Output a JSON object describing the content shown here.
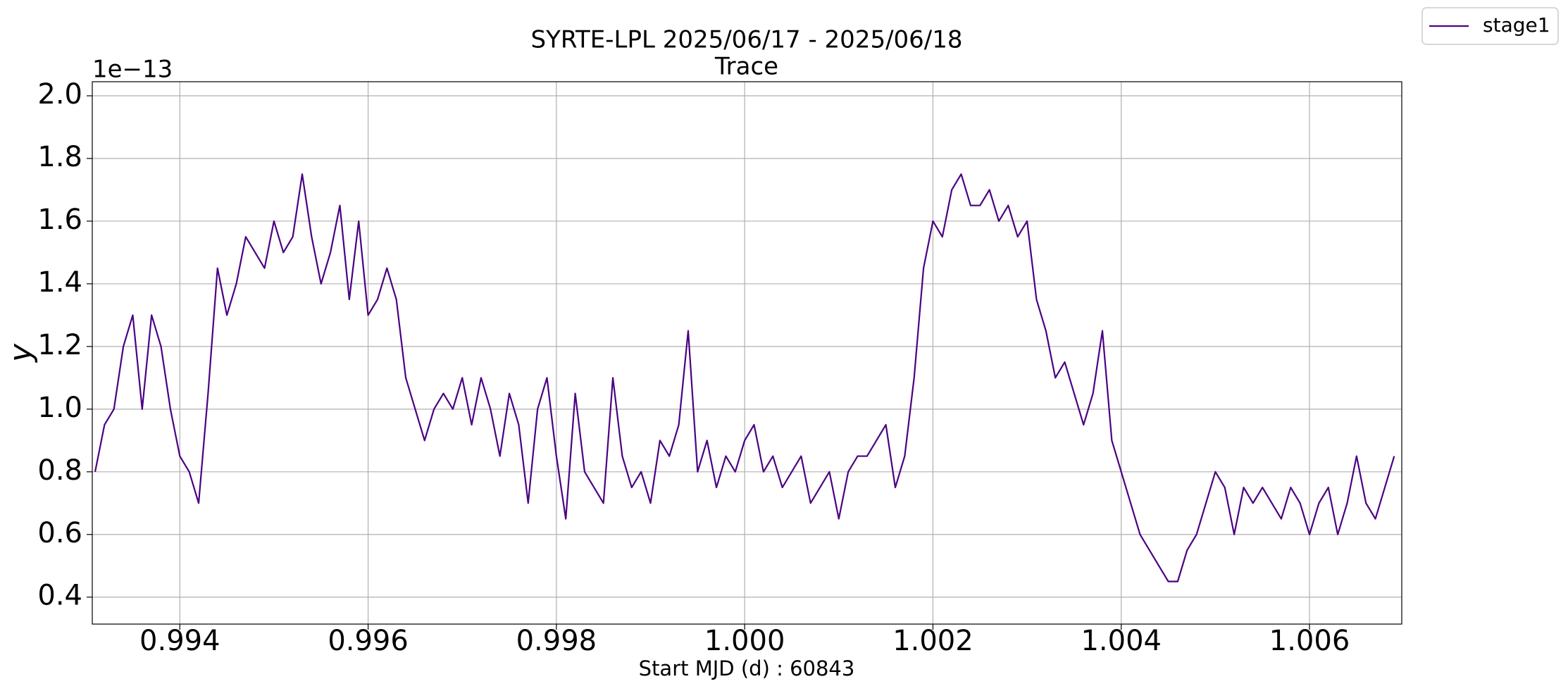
{
  "chart_data": {
    "type": "line",
    "title": "SYRTE-LPL 2025/06/17 - 2025/06/18",
    "subtitle": "Trace",
    "x_label": "Start MJD (d) : 60843",
    "y_label": "y",
    "y_offset_text": "1e−13",
    "x": [
      0.9931,
      0.9932,
      0.9933,
      0.9934,
      0.9935,
      0.9936,
      0.9937,
      0.9938,
      0.9939,
      0.994,
      0.9941,
      0.9942,
      0.9943,
      0.9944,
      0.9945,
      0.9946,
      0.9947,
      0.9948,
      0.9949,
      0.995,
      0.9951,
      0.9952,
      0.9953,
      0.9954,
      0.9955,
      0.9956,
      0.9957,
      0.9958,
      0.9959,
      0.996,
      0.9961,
      0.9962,
      0.9963,
      0.9964,
      0.9965,
      0.9966,
      0.9967,
      0.9968,
      0.9969,
      0.997,
      0.9971,
      0.9972,
      0.9973,
      0.9974,
      0.9975,
      0.9976,
      0.9977,
      0.9978,
      0.9979,
      0.998,
      0.9981,
      0.9982,
      0.9983,
      0.9984,
      0.9985,
      0.9986,
      0.9987,
      0.9988,
      0.9989,
      0.999,
      0.9991,
      0.9992,
      0.9993,
      0.9994,
      0.9995,
      0.9996,
      0.9997,
      0.9998,
      0.9999,
      1.0,
      1.0001,
      1.0002,
      1.0003,
      1.0004,
      1.0005,
      1.0006,
      1.0007,
      1.0008,
      1.0009,
      1.001,
      1.0011,
      1.0012,
      1.0013,
      1.0014,
      1.0015,
      1.0016,
      1.0017,
      1.0018,
      1.0019,
      1.002,
      1.0021,
      1.0022,
      1.0023,
      1.0024,
      1.0025,
      1.0026,
      1.0027,
      1.0028,
      1.0029,
      1.003,
      1.0031,
      1.0032,
      1.0033,
      1.0034,
      1.0035,
      1.0036,
      1.0037,
      1.0038,
      1.0039,
      1.004,
      1.0041,
      1.0042,
      1.0043,
      1.0044,
      1.0045,
      1.0046,
      1.0047,
      1.0048,
      1.0049,
      1.005,
      1.0051,
      1.0052,
      1.0053,
      1.0054,
      1.0055,
      1.0056,
      1.0057,
      1.0058,
      1.0059,
      1.006,
      1.0061,
      1.0062,
      1.0063,
      1.0064,
      1.0065,
      1.0066,
      1.0067,
      1.0068,
      1.0069
    ],
    "series": [
      {
        "name": "stage1",
        "color": "#4b0082",
        "values": [
          0.8,
          0.95,
          1.0,
          1.2,
          1.3,
          1.0,
          1.3,
          1.2,
          1.0,
          0.85,
          0.8,
          0.7,
          1.05,
          1.45,
          1.3,
          1.4,
          1.55,
          1.5,
          1.45,
          1.6,
          1.5,
          1.55,
          1.75,
          1.55,
          1.4,
          1.5,
          1.65,
          1.35,
          1.6,
          1.3,
          1.35,
          1.45,
          1.35,
          1.1,
          1.0,
          0.9,
          1.0,
          1.05,
          1.0,
          1.1,
          0.95,
          1.1,
          1.0,
          0.85,
          1.05,
          0.95,
          0.7,
          1.0,
          1.1,
          0.85,
          0.65,
          1.05,
          0.8,
          0.75,
          0.7,
          1.1,
          0.85,
          0.75,
          0.8,
          0.7,
          0.9,
          0.85,
          0.95,
          1.25,
          0.8,
          0.9,
          0.75,
          0.85,
          0.8,
          0.9,
          0.95,
          0.8,
          0.85,
          0.75,
          0.8,
          0.85,
          0.7,
          0.75,
          0.8,
          0.65,
          0.8,
          0.85,
          0.85,
          0.9,
          0.95,
          0.75,
          0.85,
          1.1,
          1.45,
          1.6,
          1.55,
          1.7,
          1.75,
          1.65,
          1.65,
          1.7,
          1.6,
          1.65,
          1.55,
          1.6,
          1.35,
          1.25,
          1.1,
          1.15,
          1.05,
          0.95,
          1.05,
          1.25,
          0.9,
          0.8,
          0.7,
          0.6,
          0.55,
          0.5,
          0.45,
          0.45,
          0.55,
          0.6,
          0.7,
          0.8,
          0.75,
          0.6,
          0.75,
          0.7,
          0.75,
          0.7,
          0.65,
          0.75,
          0.7,
          0.6,
          0.7,
          0.75,
          0.6,
          0.7,
          0.85,
          0.7,
          0.65,
          0.75,
          0.85
        ]
      }
    ],
    "xlim": [
      0.99307,
      1.00698
    ],
    "ylim": [
      0.314,
      2.045
    ],
    "xticks": [
      0.994,
      0.996,
      0.998,
      {
        "value": 1.0,
        "label": "1.000"
      },
      1.002,
      1.004,
      1.006
    ],
    "yticks": [
      0.4,
      0.6,
      0.8,
      {
        "value": 1.0,
        "label": "1.0"
      },
      1.2,
      1.4,
      1.6,
      1.8,
      {
        "value": 2.0,
        "label": "2.0"
      }
    ],
    "grid": true,
    "legend": "upper right outside"
  }
}
